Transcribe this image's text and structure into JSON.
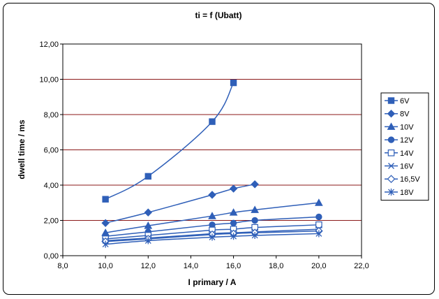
{
  "chart_data": {
    "type": "line",
    "title": "ti = f (Ubatt)",
    "xlabel": "I primary / A",
    "ylabel": "dwell time / ms",
    "xlim": [
      8,
      22
    ],
    "ylim": [
      0,
      12
    ],
    "x_ticks": [
      "8,0",
      "10,0",
      "12,0",
      "14,0",
      "16,0",
      "18,0",
      "20,0",
      "22,0"
    ],
    "y_ticks": [
      "0,00",
      "2,00",
      "4,00",
      "6,00",
      "8,00",
      "10,00",
      "12,00"
    ],
    "gridlines": "horizontal",
    "legend_position": "right",
    "line_color": "#2f5fb8",
    "grid_color": "#8b1a1a",
    "series": [
      {
        "name": "6V",
        "marker": "filled-square",
        "x": [
          10,
          12,
          15,
          16
        ],
        "y": [
          3.2,
          4.5,
          7.6,
          9.8
        ]
      },
      {
        "name": "8V",
        "marker": "filled-diamond",
        "x": [
          10,
          12,
          15,
          16,
          17
        ],
        "y": [
          1.85,
          2.45,
          3.45,
          3.8,
          4.05
        ]
      },
      {
        "name": "10V",
        "marker": "filled-triangle",
        "x": [
          10,
          12,
          15,
          16,
          17,
          20
        ],
        "y": [
          1.3,
          1.7,
          2.25,
          2.45,
          2.6,
          3.0
        ]
      },
      {
        "name": "12V",
        "marker": "filled-circle",
        "x": [
          10,
          12,
          15,
          16,
          17,
          20
        ],
        "y": [
          1.1,
          1.35,
          1.75,
          1.85,
          2.0,
          2.2
        ]
      },
      {
        "name": "14V",
        "marker": "open-square",
        "x": [
          10,
          12,
          15,
          16,
          17,
          20
        ],
        "y": [
          0.95,
          1.15,
          1.45,
          1.5,
          1.6,
          1.75
        ]
      },
      {
        "name": "16V",
        "marker": "x",
        "x": [
          10,
          12,
          15,
          16,
          17,
          20
        ],
        "y": [
          0.85,
          1.0,
          1.25,
          1.3,
          1.35,
          1.5
        ]
      },
      {
        "name": "16,5V",
        "marker": "open-diamond",
        "x": [
          10,
          12,
          15,
          16,
          17,
          20
        ],
        "y": [
          0.8,
          0.95,
          1.2,
          1.25,
          1.3,
          1.4
        ]
      },
      {
        "name": "18V",
        "marker": "asterisk",
        "x": [
          10,
          12,
          15,
          16,
          17,
          20
        ],
        "y": [
          0.65,
          0.85,
          1.05,
          1.1,
          1.15,
          1.25
        ]
      }
    ]
  }
}
